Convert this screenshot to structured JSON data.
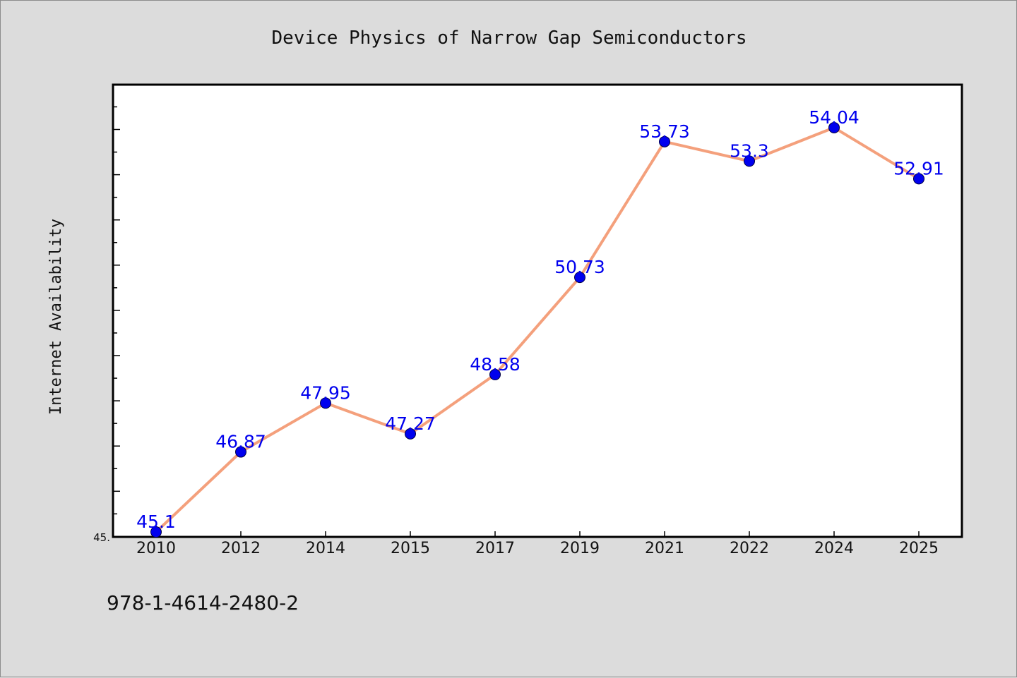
{
  "chart_data": {
    "type": "line",
    "title": "Device Physics of Narrow Gap Semiconductors",
    "xlabel": "",
    "ylabel": "Internet Availability",
    "categories": [
      "2010",
      "2012",
      "2014",
      "2015",
      "2017",
      "2019",
      "2021",
      "2022",
      "2024",
      "2025"
    ],
    "series": [
      {
        "values": [
          45.1,
          46.87,
          47.95,
          47.27,
          48.58,
          50.73,
          53.73,
          53.3,
          54.04,
          52.91
        ],
        "data_labels": [
          "45.1",
          "46.87",
          "47.95",
          "47.27",
          "48.58",
          "50.73",
          "53.73",
          "53.3",
          "54.04",
          "52.91"
        ]
      }
    ],
    "ylim": [
      45.0,
      55.0
    ],
    "ytick_labels": [
      "45."
    ],
    "grid": false,
    "legend": "none",
    "colors": {
      "line": "#f4a07c",
      "marker": "#0000ee",
      "label": "#0000ee",
      "plot_background": "#ffffff",
      "page_background": "#dcdcdc"
    }
  },
  "footer": {
    "isbn": "978-1-4614-2480-2"
  }
}
